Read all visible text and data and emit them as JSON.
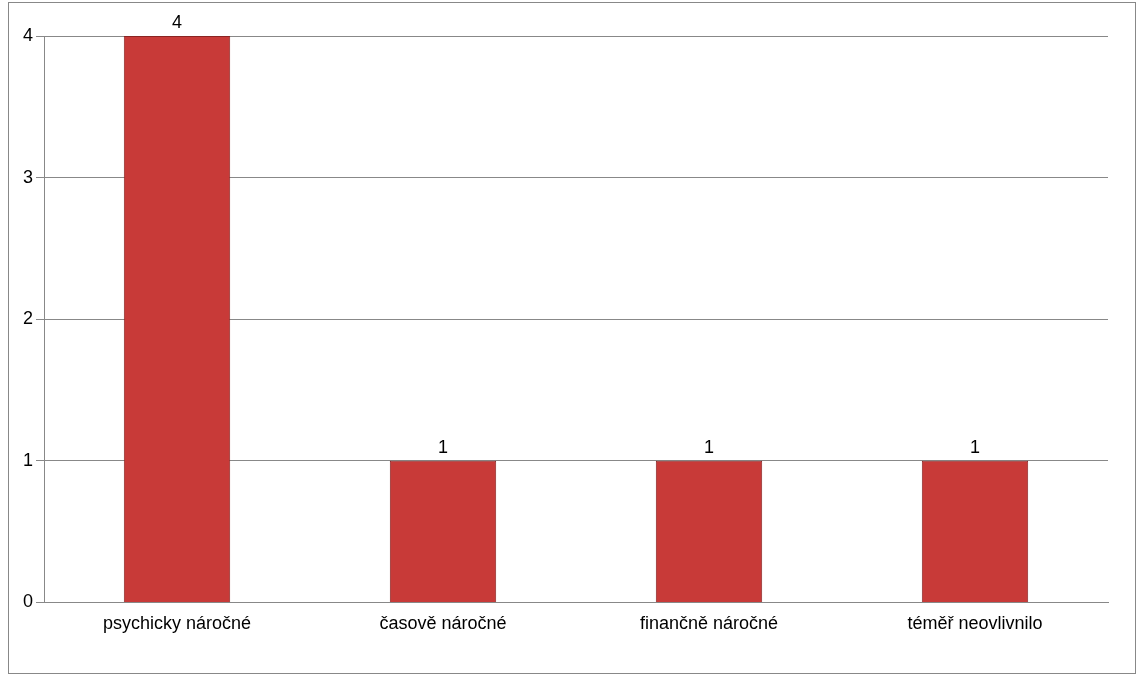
{
  "chart_data": {
    "type": "bar",
    "categories": [
      "psychicky náročné",
      "časově náročné",
      "finančně náročné",
      "téměř neovlivnilo"
    ],
    "values": [
      4,
      1,
      1,
      1
    ],
    "color": "#c83a38",
    "ylim": [
      0,
      4
    ],
    "yticks": [
      0,
      1,
      2,
      3,
      4
    ],
    "grid": "y",
    "data_labels": true,
    "legend": false
  }
}
